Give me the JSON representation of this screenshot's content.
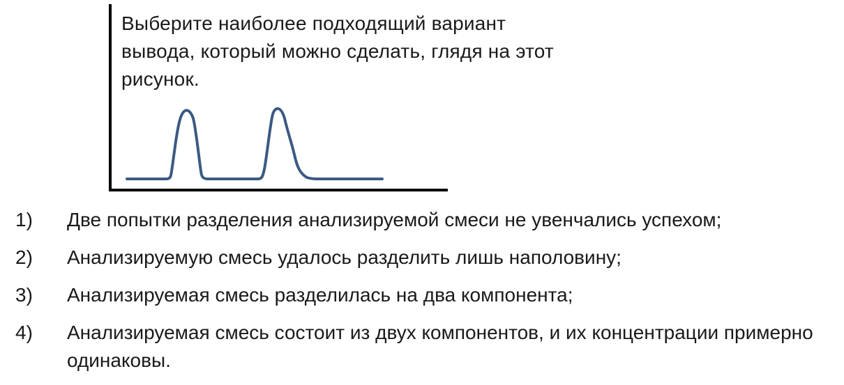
{
  "question": {
    "text": "Выберите наиболее подходящий вариант вывода, который можно сделать, глядя на этот рисунок."
  },
  "options": [
    {
      "number": "1)",
      "text": "Две попытки разделения анализируемой смеси не увенчались успехом;"
    },
    {
      "number": "2)",
      "text": "Анализируемую смесь удалось разделить лишь наполовину;"
    },
    {
      "number": "3)",
      "text": "Анализируемая смесь разделилась на два компонента;"
    },
    {
      "number": "4)",
      "text": "Анализируемая смесь состоит из двух компонентов, и их концентрации примерно одинаковы."
    }
  ],
  "figure": {
    "axis_color": "#000000",
    "curve_color": "#3b5a82",
    "peak_count": 2
  }
}
